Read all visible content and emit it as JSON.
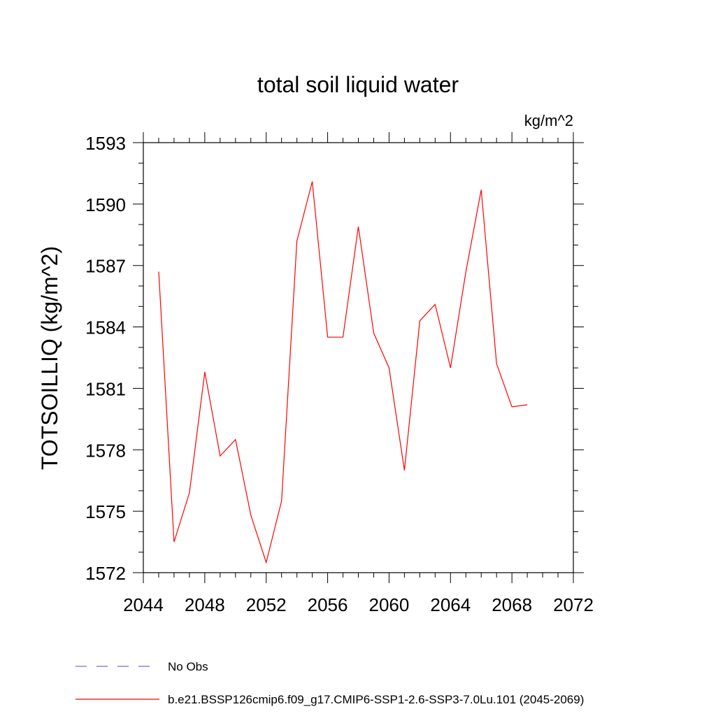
{
  "chart_data": {
    "type": "line",
    "title": "total soil liquid water",
    "units": "kg/m^2",
    "ylabel": "TOTSOILLIQ  (kg/m^2)",
    "xlabel": "",
    "xlim": [
      2044,
      2072
    ],
    "ylim": [
      1572,
      1593
    ],
    "x_ticks": [
      2044,
      2048,
      2052,
      2056,
      2060,
      2064,
      2068,
      2072
    ],
    "x_tick_labels": [
      "2044",
      "2048",
      "2052",
      "2056",
      "2060",
      "2064",
      "2068",
      "2072"
    ],
    "y_ticks": [
      1572,
      1575,
      1578,
      1581,
      1584,
      1587,
      1590,
      1593
    ],
    "y_tick_labels": [
      "1572",
      "1575",
      "1578",
      "1581",
      "1584",
      "1587",
      "1590",
      "1593"
    ],
    "grid": false,
    "legend_placement": "bottom",
    "legend": [
      {
        "label": "No Obs",
        "color": "#7b68c8",
        "style": "dashed"
      },
      {
        "label": "b.e21.BSSP126cmip6.f09_g17.CMIP6-SSP1-2.6-SSP3-7.0Lu.101 (2045-2069)",
        "color": "#ff0000",
        "style": "solid"
      }
    ],
    "series": [
      {
        "name": "b.e21.BSSP126cmip6.f09_g17.CMIP6-SSP1-2.6-SSP3-7.0Lu.101 (2045-2069)",
        "color": "#ff0000",
        "x": [
          2045,
          2046,
          2047,
          2048,
          2049,
          2050,
          2051,
          2052,
          2053,
          2054,
          2055,
          2056,
          2057,
          2058,
          2059,
          2060,
          2061,
          2062,
          2063,
          2064,
          2065,
          2066,
          2067,
          2068,
          2069
        ],
        "values": [
          1586.7,
          1573.5,
          1575.9,
          1581.8,
          1577.7,
          1578.5,
          1574.8,
          1572.5,
          1575.5,
          1588.2,
          1591.1,
          1583.5,
          1583.5,
          1588.9,
          1583.7,
          1582.0,
          1577.0,
          1584.3,
          1585.1,
          1582.0,
          1586.7,
          1590.7,
          1582.2,
          1580.1,
          1580.2
        ]
      }
    ]
  }
}
